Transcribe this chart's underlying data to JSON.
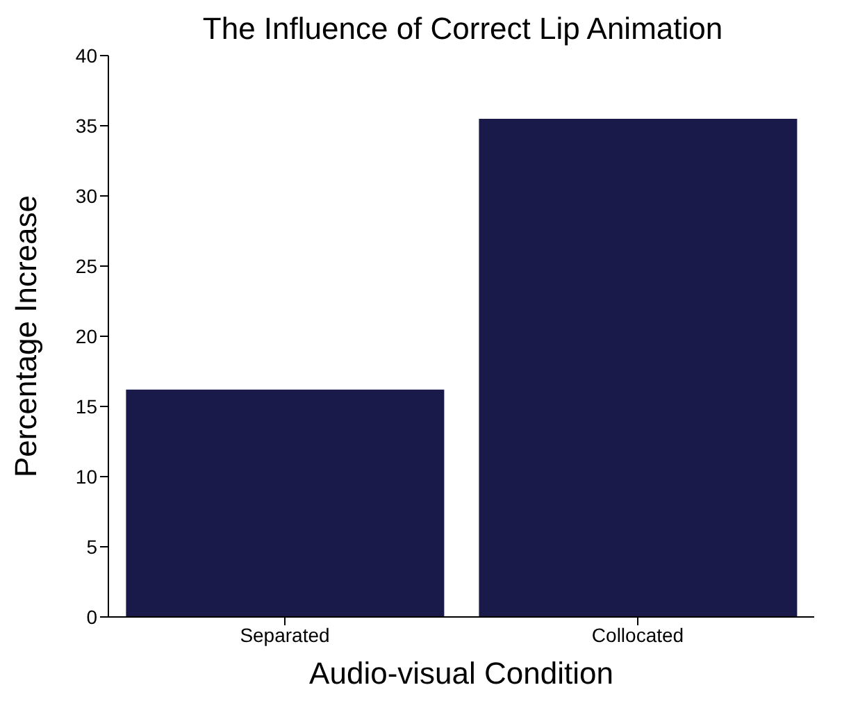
{
  "chart_data": {
    "type": "bar",
    "title": "The Influence of Correct Lip Animation",
    "xlabel": "Audio-visual Condition",
    "ylabel": "Percentage Increase",
    "categories": [
      "Separated",
      "Collocated"
    ],
    "values": [
      16.2,
      35.5
    ],
    "color": "#1a1a4a",
    "ylim": [
      0,
      40
    ],
    "yticks": [
      0,
      5,
      10,
      15,
      20,
      25,
      30,
      35,
      40
    ]
  }
}
